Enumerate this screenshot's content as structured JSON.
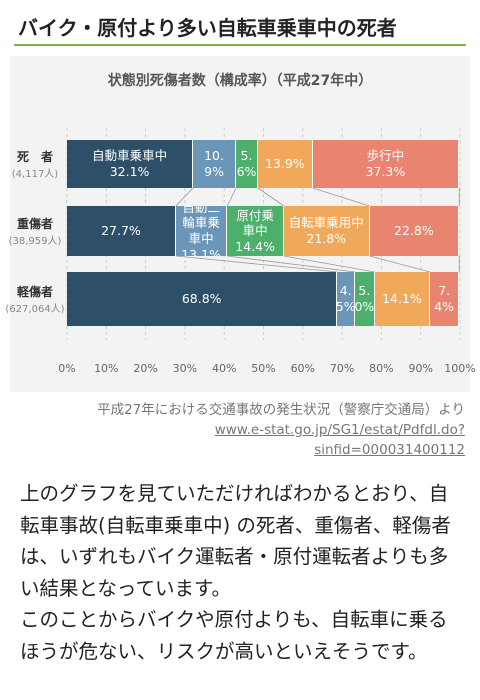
{
  "header": {
    "title": "バイク・原付より多い自転車乗車中の死者"
  },
  "chart_data": {
    "type": "bar",
    "orientation": "horizontal",
    "stacked": true,
    "title": "状態別死傷者数（構成率）（平成27年中）",
    "categories": [
      "死　者",
      "重傷者",
      "軽傷者"
    ],
    "category_sublabels": [
      "(4,117人)",
      "(38,959人)",
      "(627,064人)"
    ],
    "series": [
      {
        "name": "自動車乗車中",
        "color": "#2e4f68",
        "values": [
          32.1,
          27.7,
          68.8
        ],
        "value_labels": [
          "32.1%",
          "27.7%",
          "68.8%"
        ]
      },
      {
        "name": "自動二輪車乗車中",
        "color": "#6b96b8",
        "values": [
          10.9,
          13.1,
          4.5
        ],
        "value_labels": [
          "10.9%",
          "13.1%",
          "4.5%"
        ]
      },
      {
        "name": "原付乗車中",
        "color": "#4caf6b",
        "values": [
          5.6,
          14.4,
          5.0
        ],
        "value_labels": [
          "5.6%",
          "14.4%",
          "5.0%"
        ]
      },
      {
        "name": "自転車乗用中",
        "color": "#f0a95a",
        "values": [
          13.9,
          21.8,
          14.1
        ],
        "value_labels": [
          "13.9%",
          "21.8%",
          "14.1%"
        ]
      },
      {
        "name": "歩行中",
        "color": "#e8846f",
        "values": [
          37.3,
          22.8,
          7.4
        ],
        "value_labels": [
          "37.3%",
          "22.8%",
          "7.4%"
        ]
      }
    ],
    "xlim": [
      0,
      100
    ],
    "xticks": [
      {
        "value": 0,
        "label": "0%"
      },
      {
        "value": 10,
        "label": "10%"
      },
      {
        "value": 20,
        "label": "20%"
      },
      {
        "value": 30,
        "label": "30%"
      },
      {
        "value": 40,
        "label": "40%"
      },
      {
        "value": 50,
        "label": "50%"
      },
      {
        "value": 60,
        "label": "60%"
      },
      {
        "value": 70,
        "label": "70%"
      },
      {
        "value": 80,
        "label": "80%"
      },
      {
        "value": 90,
        "label": "90%"
      },
      {
        "value": 100,
        "label": "100%"
      }
    ],
    "grid": true
  },
  "source": {
    "text": "平成27年における交通事故の発生状況（警察庁交通局）より",
    "link": "www.e-stat.go.jp/SG1/estat/Pdfdl.do?sinfid=000031400112"
  },
  "body": {
    "paragraphs": [
      "上のグラフを見ていただければわかるとおり、自転車事故(自転車乗車中) の死者、重傷者、軽傷者は、いずれもバイク運転者・原付運転者よりも多い結果となっています。",
      "このことからバイクや原付よりも、自転車に乗るほうが危ない、リスクが高いといえそうです。"
    ]
  }
}
